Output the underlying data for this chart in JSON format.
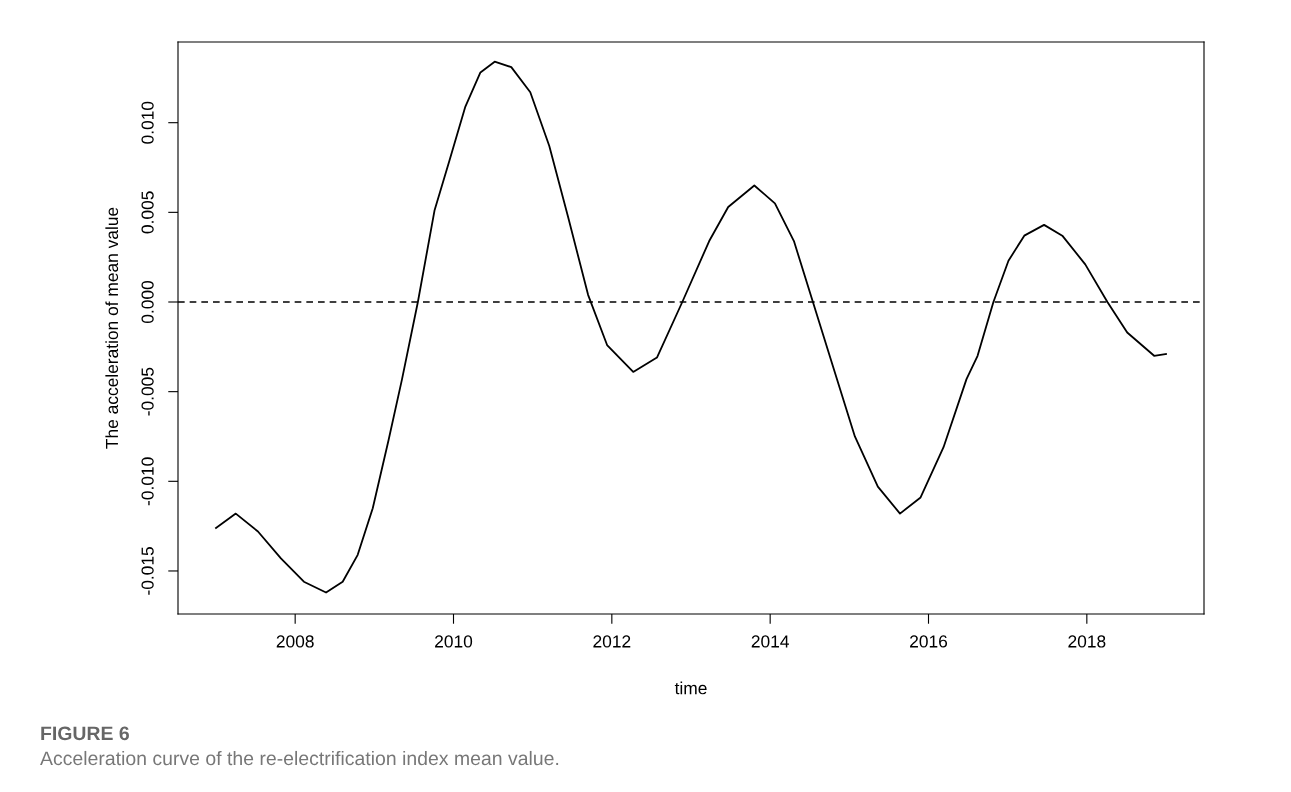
{
  "chart_data": {
    "type": "line",
    "xlabel": "time",
    "ylabel": "The acceleration of mean value",
    "annotations": [
      "FIGURE 6",
      "Acceleration curve of the re-electrification index mean value."
    ],
    "x": [
      2007.0,
      2007.25,
      2007.53,
      2007.82,
      2008.11,
      2008.39,
      2008.6,
      2008.79,
      2008.98,
      2009.18,
      2009.35,
      2009.55,
      2009.76,
      2009.95,
      2010.15,
      2010.34,
      2010.52,
      2010.73,
      2010.97,
      2011.21,
      2011.45,
      2011.7,
      2011.94,
      2012.27,
      2012.57,
      2012.89,
      2013.23,
      2013.47,
      2013.8,
      2014.06,
      2014.3,
      2014.54,
      2014.78,
      2015.07,
      2015.36,
      2015.64,
      2015.9,
      2016.19,
      2016.48,
      2016.62,
      2016.82,
      2017.01,
      2017.21,
      2017.46,
      2017.69,
      2017.98,
      2018.26,
      2018.51,
      2018.85,
      2019.0
    ],
    "series": [
      {
        "color": "#000000",
        "values": [
          -0.0126,
          -0.0118,
          -0.0128,
          -0.0143,
          -0.0156,
          -0.0162,
          -0.0156,
          -0.0141,
          -0.0115,
          -0.0077,
          -0.0043,
          0.0,
          0.0051,
          0.0079,
          0.0109,
          0.0128,
          0.0134,
          0.0131,
          0.0117,
          0.0087,
          0.0047,
          0.0004,
          -0.0024,
          -0.0039,
          -0.0031,
          0.0,
          0.0034,
          0.0053,
          0.0065,
          0.0055,
          0.0034,
          0.0,
          -0.0034,
          -0.0075,
          -0.0103,
          -0.0118,
          -0.0109,
          -0.0081,
          -0.0043,
          -0.003,
          0.0,
          0.0023,
          0.0037,
          0.0043,
          0.0037,
          0.0021,
          0.0,
          -0.0017,
          -0.003,
          -0.0029
        ]
      }
    ],
    "xlim": [
      2006.52,
      2019.48
    ],
    "ylim": [
      -0.0174,
      0.0145
    ],
    "xticks": [
      2008,
      2010,
      2012,
      2014,
      2016,
      2018
    ],
    "yticks": [
      {
        "value": -0.015,
        "label": "-0.015"
      },
      {
        "value": -0.01,
        "label": "-0.010"
      },
      {
        "value": -0.005,
        "label": "-0.005"
      },
      {
        "value": 0,
        "label": "0.000"
      },
      {
        "value": 0.005,
        "label": "0.005"
      },
      {
        "value": 0.01,
        "label": "0.010"
      }
    ],
    "ref_lines": [
      {
        "axis": "y",
        "value": 0,
        "color": "#000000",
        "line_style": "dashed"
      }
    ],
    "grid": false,
    "legend": false,
    "marker": "none",
    "line_style": "solid"
  }
}
